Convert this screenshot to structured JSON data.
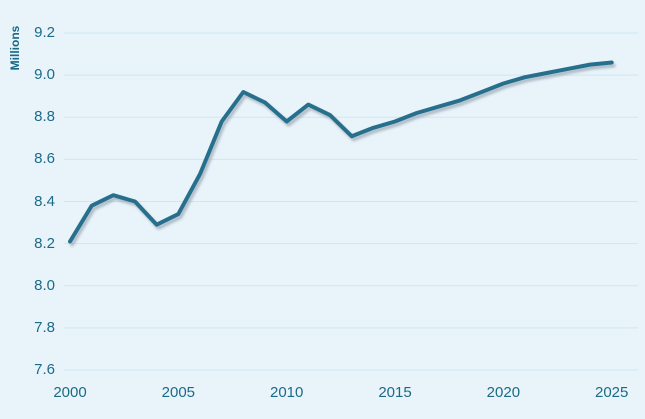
{
  "chart": {
    "background_color": "#e9f3fa",
    "grid_color": "#cde7f2",
    "text_color": "#1a6b88",
    "line_color": "#26708e",
    "shadow_color": "#7e8f9c"
  },
  "chart_data": {
    "type": "line",
    "title": "",
    "xlabel": "",
    "ylabel": "Millions",
    "x": [
      2000,
      2001,
      2002,
      2003,
      2004,
      2005,
      2006,
      2007,
      2008,
      2009,
      2010,
      2011,
      2012,
      2013,
      2014,
      2015,
      2016,
      2017,
      2018,
      2019,
      2020,
      2021,
      2022,
      2023,
      2024,
      2025
    ],
    "values": [
      8.21,
      8.38,
      8.43,
      8.4,
      8.29,
      8.34,
      8.53,
      8.78,
      8.92,
      8.87,
      8.78,
      8.86,
      8.81,
      8.71,
      8.75,
      8.78,
      8.82,
      8.85,
      8.88,
      8.92,
      8.96,
      8.99,
      9.01,
      9.03,
      9.05,
      9.06
    ],
    "ylim": [
      7.6,
      9.2
    ],
    "xlim": [
      2000,
      2025
    ],
    "yticks": [
      9.2,
      9.0,
      8.8,
      8.6,
      8.4,
      8.2,
      8.0,
      7.8,
      7.6
    ],
    "xticks": [
      2000,
      2005,
      2010,
      2015,
      2020,
      2025
    ],
    "grid": true,
    "legend": null
  }
}
